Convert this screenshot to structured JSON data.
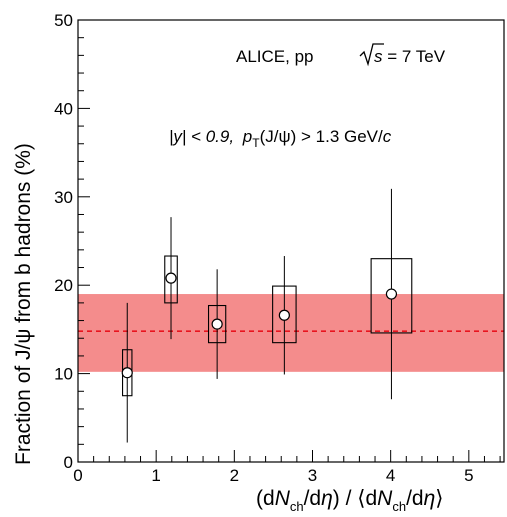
{
  "chart_data": {
    "type": "scatter",
    "title": "",
    "annotations": {
      "experiment": "ALICE, pp",
      "energy_lhs": "s",
      "energy_rhs": " = 7 TeV",
      "cuts_y": "|y| < 0.9,",
      "cuts_pt_p": "p",
      "cuts_pt_sub": "T",
      "cuts_pt_rest": "(J/ψ) > 1.3 GeV/",
      "cuts_pt_c": "c"
    },
    "xlabel": {
      "open": "(d",
      "N1": "N",
      "sub1": "ch",
      "mid1": "/d",
      "eta1": "η",
      "mid2": ") / ⟨d",
      "N2": "N",
      "sub2": "ch",
      "mid3": "/d",
      "eta2": "η",
      "close": "⟩"
    },
    "ylabel": "Fraction of J/ψ from b hadrons (%)",
    "xlim": [
      0,
      5.45
    ],
    "ylim": [
      0,
      50
    ],
    "x_ticks": [
      0,
      1,
      2,
      3,
      4,
      5
    ],
    "y_ticks": [
      0,
      10,
      20,
      30,
      40,
      50
    ],
    "grid": false,
    "series": [
      {
        "x": [
          0.63,
          1.19,
          1.78,
          2.64,
          4.01
        ],
        "y": [
          10.1,
          20.8,
          15.6,
          16.6,
          19.0
        ],
        "stat_err": [
          7.9,
          6.9,
          6.2,
          6.7,
          11.9
        ],
        "syst_box_low": [
          7.5,
          18.0,
          13.5,
          13.5,
          14.6
        ],
        "syst_box_high": [
          12.7,
          23.3,
          17.7,
          19.9,
          23.0
        ],
        "syst_box_halfwidth": [
          0.06,
          0.08,
          0.11,
          0.15,
          0.26
        ]
      }
    ],
    "reference_band": {
      "central": 14.8,
      "low": 10.2,
      "high": 19.0
    },
    "colors": {
      "band": "#f48c8c",
      "line": "#e8141e",
      "marker": "#000000"
    }
  }
}
